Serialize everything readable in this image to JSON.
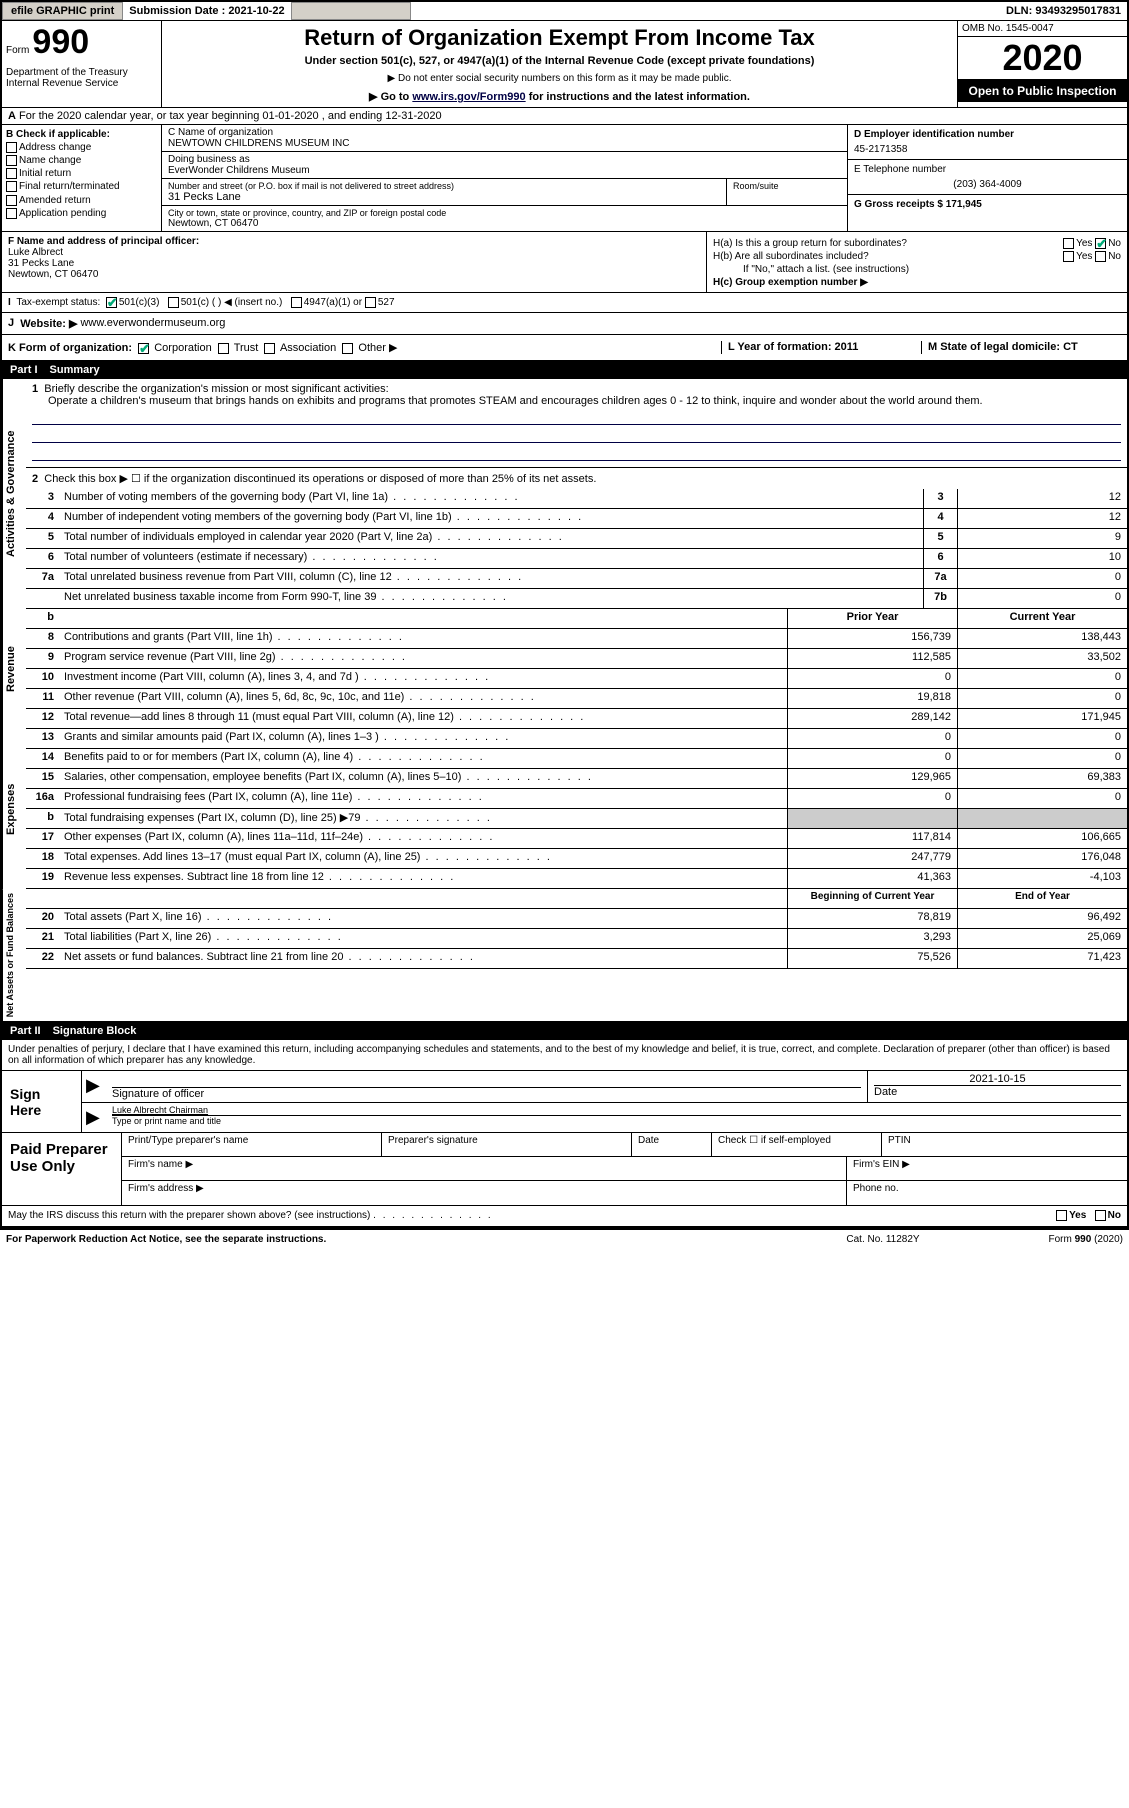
{
  "topbar": {
    "efile": "efile GRAPHIC print",
    "submission_label": "Submission Date : 2021-10-22",
    "dln": "DLN: 93493295017831"
  },
  "header": {
    "form_label": "Form",
    "form_number": "990",
    "dept": "Department of the Treasury\nInternal Revenue Service",
    "title": "Return of Organization Exempt From Income Tax",
    "subtitle": "Under section 501(c), 527, or 4947(a)(1) of the Internal Revenue Code (except private foundations)",
    "note1": "▶ Do not enter social security numbers on this form as it may be made public.",
    "note2_pre": "▶ Go to ",
    "note2_link": "www.irs.gov/Form990",
    "note2_post": " for instructions and the latest information.",
    "omb": "OMB No. 1545-0047",
    "year": "2020",
    "inspection": "Open to Public Inspection"
  },
  "line_a": "For the 2020 calendar year, or tax year beginning 01-01-2020   , and ending 12-31-2020",
  "col_b": {
    "label": "B Check if applicable:",
    "items": [
      "Address change",
      "Name change",
      "Initial return",
      "Final return/terminated",
      "Amended return",
      "Application pending"
    ]
  },
  "col_c": {
    "name_label": "C Name of organization",
    "name": "NEWTOWN CHILDRENS MUSEUM INC",
    "dba_label": "Doing business as",
    "dba": "EverWonder Childrens Museum",
    "addr_label": "Number and street (or P.O. box if mail is not delivered to street address)",
    "addr": "31 Pecks Lane",
    "room_label": "Room/suite",
    "city_label": "City or town, state or province, country, and ZIP or foreign postal code",
    "city": "Newtown, CT  06470"
  },
  "col_d": {
    "ein_label": "D Employer identification number",
    "ein": "45-2171358",
    "phone_label": "E Telephone number",
    "phone": "(203) 364-4009",
    "gross_label": "G Gross receipts $ 171,945"
  },
  "row_f": {
    "label": "F  Name and address of principal officer:",
    "name": "Luke Albrect",
    "addr1": "31 Pecks Lane",
    "addr2": "Newtown, CT  06470"
  },
  "row_h": {
    "ha": "H(a)  Is this a group return for subordinates?",
    "ha_yes": "Yes",
    "ha_no": "No",
    "hb": "H(b)  Are all subordinates included?",
    "hb_yes": "Yes",
    "hb_no": "No",
    "hb_note": "If \"No,\" attach a list. (see instructions)",
    "hc": "H(c)  Group exemption number ▶"
  },
  "row_i": {
    "label": "Tax-exempt status:",
    "opt1": "501(c)(3)",
    "opt2": "501(c) (  ) ◀ (insert no.)",
    "opt3": "4947(a)(1) or",
    "opt4": "527"
  },
  "row_j": {
    "label": "J",
    "website_label": "Website: ▶",
    "website": "www.everwondermuseum.org"
  },
  "row_k": {
    "k_label": "K Form of organization:",
    "opts": [
      "Corporation",
      "Trust",
      "Association",
      "Other ▶"
    ],
    "l_label": "L Year of formation: 2011",
    "m_label": "M State of legal domicile: CT"
  },
  "part1": {
    "header_num": "Part I",
    "header_title": "Summary",
    "side_activities": "Activities & Governance",
    "side_revenue": "Revenue",
    "side_expenses": "Expenses",
    "side_net": "Net Assets or Fund Balances",
    "q1": "Briefly describe the organization's mission or most significant activities:",
    "mission": "Operate a children's museum that brings hands on exhibits and programs that promotes STEAM and encourages children ages 0 - 12 to think, inquire and wonder about the world around them.",
    "q2": "Check this box ▶ ☐  if the organization discontinued its operations or disposed of more than 25% of its net assets.",
    "rows_gov": [
      {
        "n": "3",
        "t": "Number of voting members of the governing body (Part VI, line 1a)",
        "b": "3",
        "v": "12"
      },
      {
        "n": "4",
        "t": "Number of independent voting members of the governing body (Part VI, line 1b)",
        "b": "4",
        "v": "12"
      },
      {
        "n": "5",
        "t": "Total number of individuals employed in calendar year 2020 (Part V, line 2a)",
        "b": "5",
        "v": "9"
      },
      {
        "n": "6",
        "t": "Total number of volunteers (estimate if necessary)",
        "b": "6",
        "v": "10"
      },
      {
        "n": "7a",
        "t": "Total unrelated business revenue from Part VIII, column (C), line 12",
        "b": "7a",
        "v": "0"
      },
      {
        "n": "",
        "t": "Net unrelated business taxable income from Form 990-T, line 39",
        "b": "7b",
        "v": "0"
      }
    ],
    "col_hdr_prior": "Prior Year",
    "col_hdr_current": "Current Year",
    "rows_rev": [
      {
        "n": "8",
        "t": "Contributions and grants (Part VIII, line 1h)",
        "p": "156,739",
        "c": "138,443"
      },
      {
        "n": "9",
        "t": "Program service revenue (Part VIII, line 2g)",
        "p": "112,585",
        "c": "33,502"
      },
      {
        "n": "10",
        "t": "Investment income (Part VIII, column (A), lines 3, 4, and 7d )",
        "p": "0",
        "c": "0"
      },
      {
        "n": "11",
        "t": "Other revenue (Part VIII, column (A), lines 5, 6d, 8c, 9c, 10c, and 11e)",
        "p": "19,818",
        "c": "0"
      },
      {
        "n": "12",
        "t": "Total revenue—add lines 8 through 11 (must equal Part VIII, column (A), line 12)",
        "p": "289,142",
        "c": "171,945"
      }
    ],
    "rows_exp": [
      {
        "n": "13",
        "t": "Grants and similar amounts paid (Part IX, column (A), lines 1–3 )",
        "p": "0",
        "c": "0"
      },
      {
        "n": "14",
        "t": "Benefits paid to or for members (Part IX, column (A), line 4)",
        "p": "0",
        "c": "0"
      },
      {
        "n": "15",
        "t": "Salaries, other compensation, employee benefits (Part IX, column (A), lines 5–10)",
        "p": "129,965",
        "c": "69,383"
      },
      {
        "n": "16a",
        "t": "Professional fundraising fees (Part IX, column (A), line 11e)",
        "p": "0",
        "c": "0"
      },
      {
        "n": "b",
        "t": "Total fundraising expenses (Part IX, column (D), line 25) ▶79",
        "p": "",
        "c": "",
        "shaded": true
      },
      {
        "n": "17",
        "t": "Other expenses (Part IX, column (A), lines 11a–11d, 11f–24e)",
        "p": "117,814",
        "c": "106,665"
      },
      {
        "n": "18",
        "t": "Total expenses. Add lines 13–17 (must equal Part IX, column (A), line 25)",
        "p": "247,779",
        "c": "176,048"
      },
      {
        "n": "19",
        "t": "Revenue less expenses. Subtract line 18 from line 12",
        "p": "41,363",
        "c": "-4,103"
      }
    ],
    "col_hdr_begin": "Beginning of Current Year",
    "col_hdr_end": "End of Year",
    "rows_net": [
      {
        "n": "20",
        "t": "Total assets (Part X, line 16)",
        "p": "78,819",
        "c": "96,492"
      },
      {
        "n": "21",
        "t": "Total liabilities (Part X, line 26)",
        "p": "3,293",
        "c": "25,069"
      },
      {
        "n": "22",
        "t": "Net assets or fund balances. Subtract line 21 from line 20",
        "p": "75,526",
        "c": "71,423"
      }
    ]
  },
  "part2": {
    "header_num": "Part II",
    "header_title": "Signature Block",
    "declaration": "Under penalties of perjury, I declare that I have examined this return, including accompanying schedules and statements, and to the best of my knowledge and belief, it is true, correct, and complete. Declaration of preparer (other than officer) is based on all information of which preparer has any knowledge.",
    "sign_here": "Sign Here",
    "sig_officer": "Signature of officer",
    "sig_date_label": "Date",
    "sig_date": "2021-10-15",
    "sig_name": "Luke Albrecht  Chairman",
    "sig_type": "Type or print name and title",
    "paid_prep": "Paid Preparer Use Only",
    "prep_name": "Print/Type preparer's name",
    "prep_sig": "Preparer's signature",
    "prep_date": "Date",
    "prep_check": "Check ☐ if self-employed",
    "prep_ptin": "PTIN",
    "firm_name": "Firm's name   ▶",
    "firm_ein": "Firm's EIN ▶",
    "firm_addr": "Firm's address ▶",
    "firm_phone": "Phone no.",
    "discuss": "May the IRS discuss this return with the preparer shown above? (see instructions)",
    "discuss_yes": "Yes",
    "discuss_no": "No"
  },
  "footer": {
    "paperwork": "For Paperwork Reduction Act Notice, see the separate instructions.",
    "cat": "Cat. No. 11282Y",
    "form": "Form 990 (2020)"
  }
}
